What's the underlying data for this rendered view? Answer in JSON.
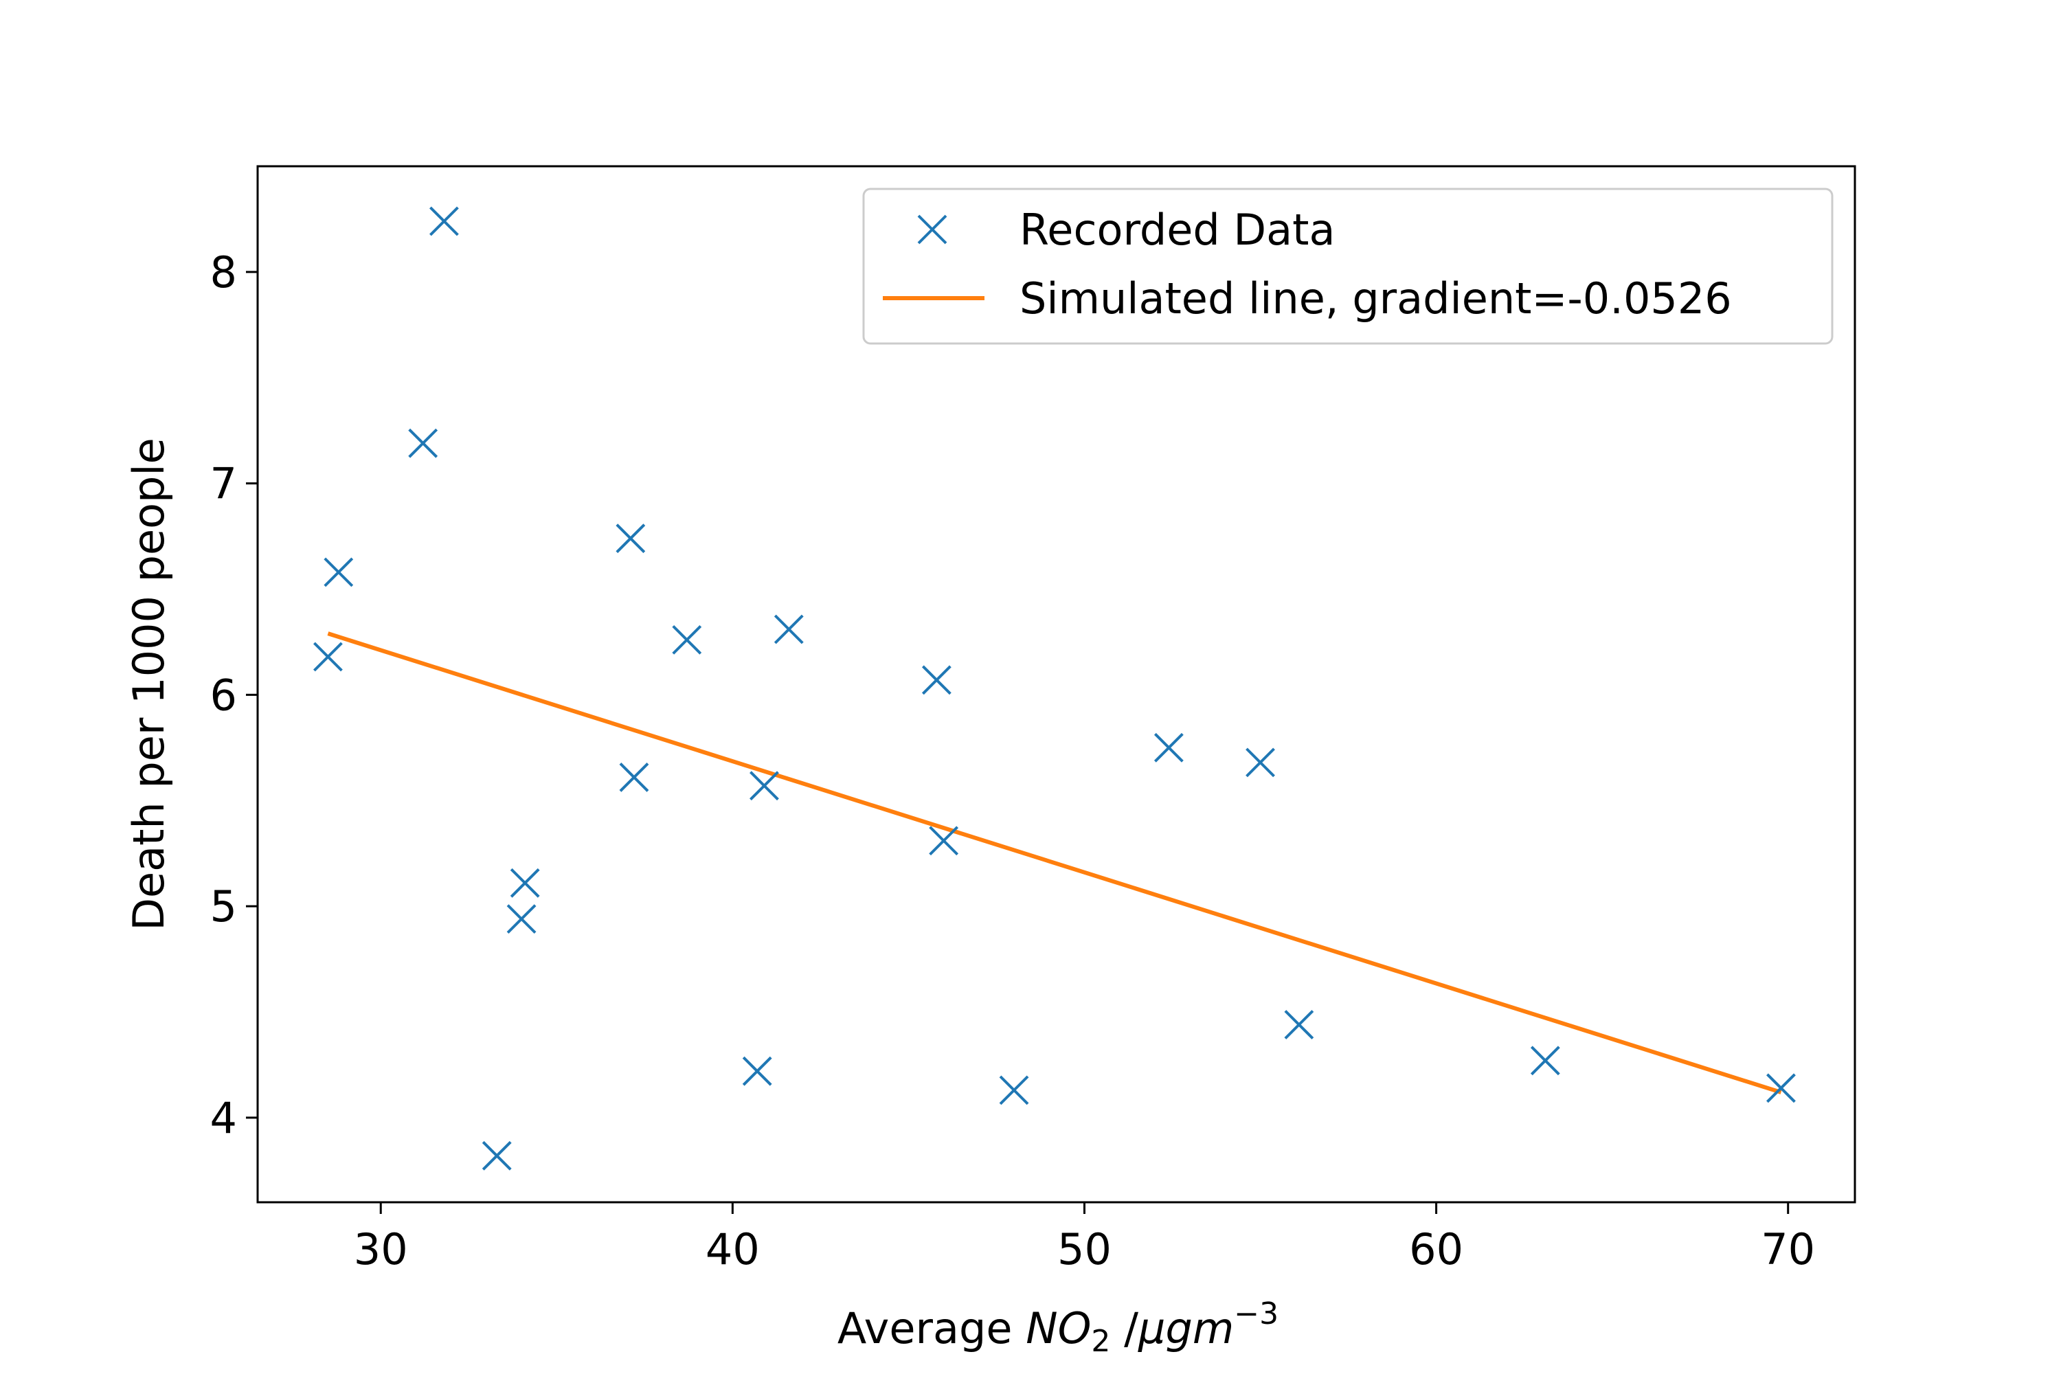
{
  "chart_data": {
    "type": "scatter",
    "title": "",
    "xlabel": {
      "prefix": "Average ",
      "main": "NO",
      "sub": "2",
      "mid": " /",
      "unit_main": "μgm",
      "unit_sup": "−3"
    },
    "ylabel": "Death per 1000 people",
    "xlim": [
      26.5,
      71.9
    ],
    "ylim": [
      3.6,
      8.5
    ],
    "xticks": [
      30,
      40,
      50,
      60,
      70
    ],
    "yticks": [
      4,
      5,
      6,
      7,
      8
    ],
    "grid": false,
    "legend_position": "top-right",
    "series": [
      {
        "name": "Recorded Data",
        "kind": "marker",
        "marker": "x",
        "color": "#1f77b4",
        "points": [
          {
            "x": 28.5,
            "y": 6.18
          },
          {
            "x": 28.8,
            "y": 6.58
          },
          {
            "x": 31.2,
            "y": 7.19
          },
          {
            "x": 31.8,
            "y": 8.24
          },
          {
            "x": 33.3,
            "y": 3.82
          },
          {
            "x": 34.0,
            "y": 4.94
          },
          {
            "x": 34.1,
            "y": 5.11
          },
          {
            "x": 37.1,
            "y": 6.74
          },
          {
            "x": 37.2,
            "y": 5.61
          },
          {
            "x": 38.7,
            "y": 6.26
          },
          {
            "x": 40.7,
            "y": 4.22
          },
          {
            "x": 40.9,
            "y": 5.57
          },
          {
            "x": 41.6,
            "y": 6.31
          },
          {
            "x": 45.8,
            "y": 6.07
          },
          {
            "x": 46.0,
            "y": 5.31
          },
          {
            "x": 48.0,
            "y": 4.13
          },
          {
            "x": 52.4,
            "y": 5.75
          },
          {
            "x": 55.0,
            "y": 5.68
          },
          {
            "x": 56.1,
            "y": 4.44
          },
          {
            "x": 63.1,
            "y": 4.27
          },
          {
            "x": 69.8,
            "y": 4.14
          }
        ]
      },
      {
        "name": "Simulated line, gradient=-0.0526",
        "kind": "line",
        "color": "#ff7f0e",
        "points": [
          {
            "x": 28.5,
            "y": 6.29
          },
          {
            "x": 69.8,
            "y": 4.12
          }
        ]
      }
    ]
  }
}
